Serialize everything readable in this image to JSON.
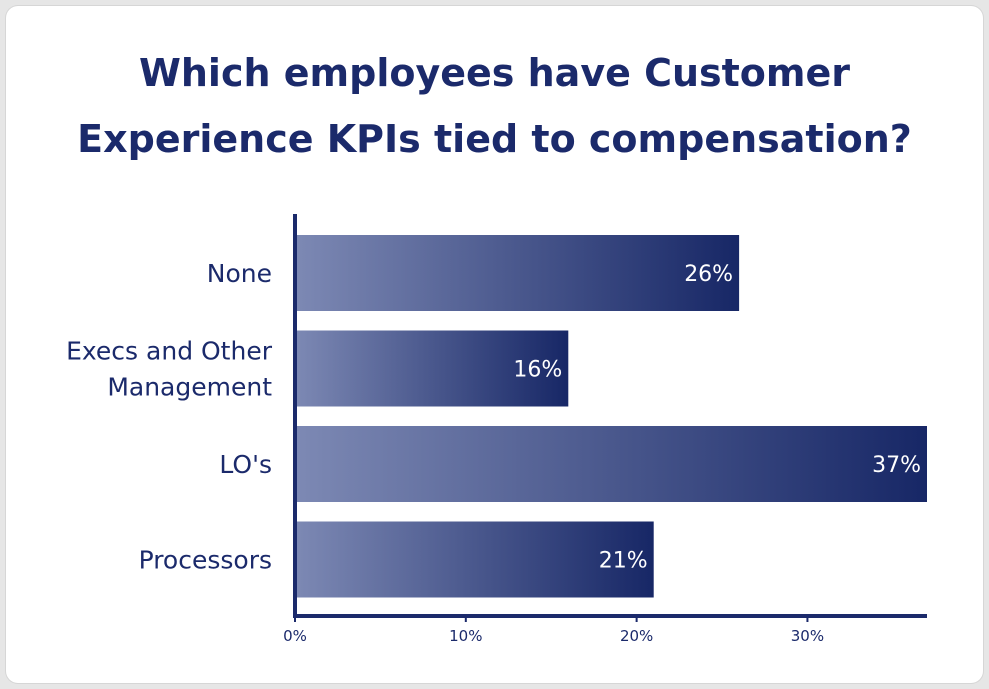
{
  "chart_data": {
    "type": "bar",
    "orientation": "horizontal",
    "title_lines": [
      "Which employees have Customer",
      "Experience KPIs tied to compensation?"
    ],
    "categories": [
      {
        "lines": [
          "None"
        ]
      },
      {
        "lines": [
          "Execs and Other",
          "Management"
        ]
      },
      {
        "lines": [
          "LO's"
        ]
      },
      {
        "lines": [
          "Processors"
        ]
      }
    ],
    "values": [
      26,
      16,
      37,
      21
    ],
    "value_labels": [
      "26%",
      "16%",
      "37%",
      "21%"
    ],
    "xlim": [
      0,
      37
    ],
    "xticks": [
      0,
      10,
      20,
      30
    ],
    "xtick_labels": [
      "0%",
      "10%",
      "20%",
      "30%"
    ],
    "grid": false,
    "legend": "none",
    "colors": {
      "bar_start": "#7d89b4",
      "bar_end": "#172766",
      "axis": "#1b2a6b",
      "text": "#1b2a6b"
    }
  }
}
